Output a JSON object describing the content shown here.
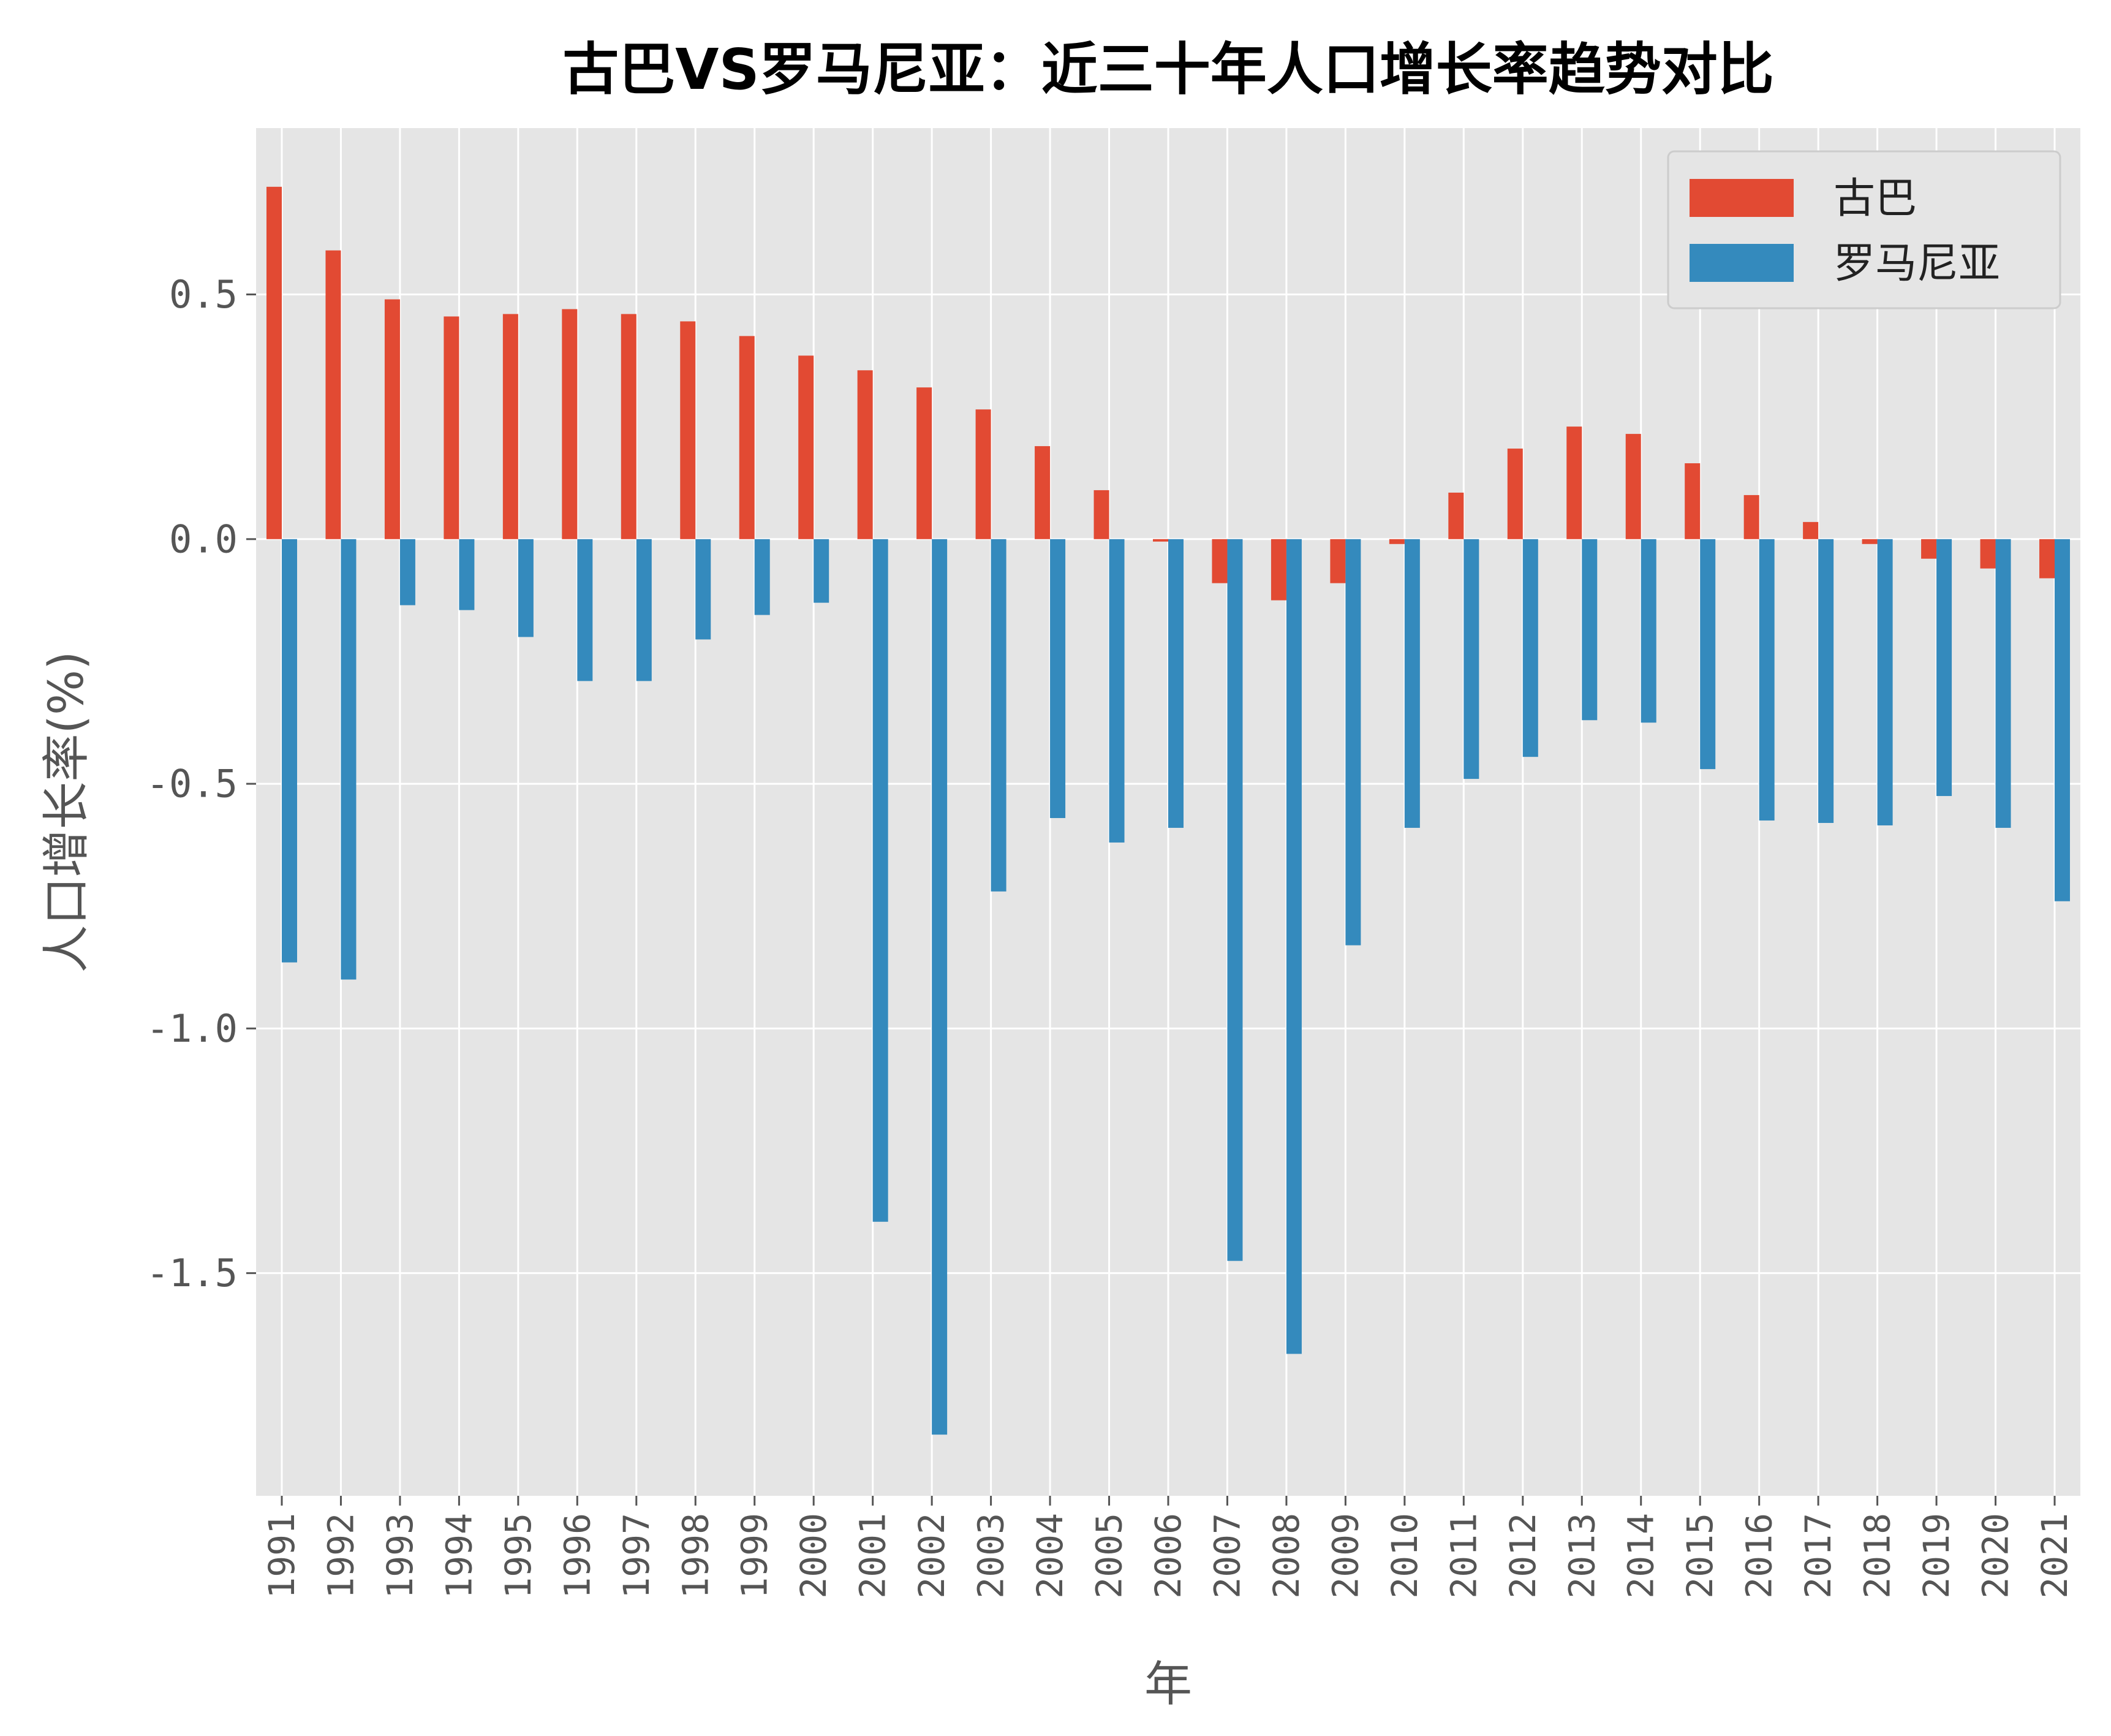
{
  "chart_data": {
    "type": "bar",
    "title": "古巴VS罗马尼亚：近三十年人口增长率趋势对比",
    "xlabel": "年",
    "ylabel": "人口增长率(%)",
    "categories": [
      "1991",
      "1992",
      "1993",
      "1994",
      "1995",
      "1996",
      "1997",
      "1998",
      "1999",
      "2000",
      "2001",
      "2002",
      "2003",
      "2004",
      "2005",
      "2006",
      "2007",
      "2008",
      "2009",
      "2010",
      "2011",
      "2012",
      "2013",
      "2014",
      "2015",
      "2016",
      "2017",
      "2018",
      "2019",
      "2020",
      "2021"
    ],
    "series": [
      {
        "name": "古巴",
        "color": "#E24A33",
        "values": [
          0.72,
          0.59,
          0.49,
          0.455,
          0.46,
          0.47,
          0.46,
          0.445,
          0.415,
          0.375,
          0.345,
          0.31,
          0.265,
          0.19,
          0.1,
          -0.005,
          -0.09,
          -0.125,
          -0.09,
          -0.01,
          0.095,
          0.185,
          0.23,
          0.215,
          0.155,
          0.09,
          0.035,
          -0.01,
          -0.04,
          -0.06,
          -0.08
        ]
      },
      {
        "name": "罗马尼亚",
        "color": "#348ABD",
        "values": [
          -0.865,
          -0.9,
          -0.135,
          -0.145,
          -0.2,
          -0.29,
          -0.29,
          -0.205,
          -0.155,
          -0.13,
          -1.395,
          -1.83,
          -0.72,
          -0.57,
          -0.62,
          -0.59,
          -1.475,
          -1.665,
          -0.83,
          -0.59,
          -0.49,
          -0.445,
          -0.37,
          -0.375,
          -0.47,
          -0.575,
          -0.58,
          -0.585,
          -0.525,
          -0.59,
          -0.74
        ]
      }
    ],
    "yticks": [
      "0.5",
      "0.0",
      "-0.5",
      "-1.0",
      "-1.5"
    ],
    "ylim": [
      -1.955,
      0.84
    ],
    "grid": true,
    "legend": "top-right",
    "background": "#E5E5E5"
  }
}
